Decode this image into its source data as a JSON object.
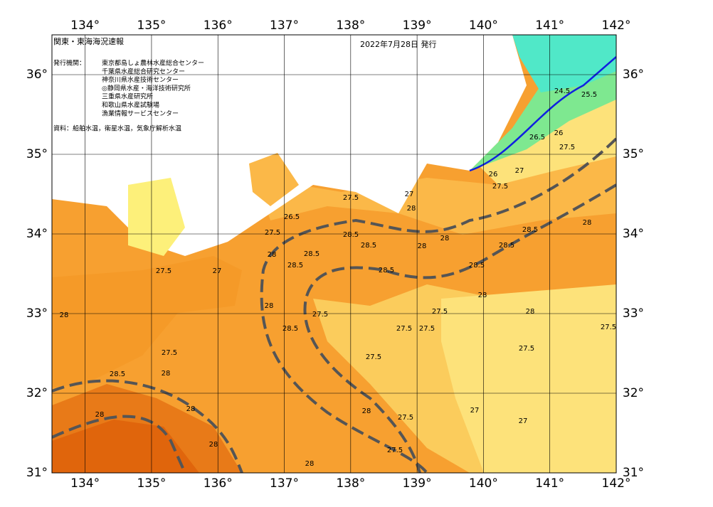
{
  "header": {
    "title": "関東・東海海況速報",
    "date": "2022年7月28日 発行"
  },
  "issuers": {
    "label": "発行機関：",
    "names": [
      "東京都島しょ農林水産総合センター",
      "千葉県水産総合研究センター",
      "神奈川県水産技術センター",
      "◎静岡県水産・海洋技術研究所",
      "三重県水産研究所",
      "和歌山県水産試験場",
      "漁業情報サービスセンター"
    ]
  },
  "source": "資料：船舶水温，衛星水温，気象庁解析水温",
  "map": {
    "lon_range": [
      133.5,
      142
    ],
    "lat_range": [
      31,
      36.5
    ],
    "lon_ticks": [
      {
        "value": 134,
        "label": "134°"
      },
      {
        "value": 135,
        "label": "135°"
      },
      {
        "value": 136,
        "label": "136°"
      },
      {
        "value": 137,
        "label": "137°"
      },
      {
        "value": 138,
        "label": "138°"
      },
      {
        "value": 139,
        "label": "139°"
      },
      {
        "value": 140,
        "label": "140°"
      },
      {
        "value": 141,
        "label": "141°"
      },
      {
        "value": 142,
        "label": "142°"
      }
    ],
    "lat_ticks": [
      {
        "value": 31,
        "label": "31°"
      },
      {
        "value": 32,
        "label": "32°"
      },
      {
        "value": 33,
        "label": "33°"
      },
      {
        "value": 34,
        "label": "34°"
      },
      {
        "value": 35,
        "label": "35°"
      },
      {
        "value": 36,
        "label": "36°"
      }
    ],
    "contour_labels": [
      "27.5",
      "27",
      "28",
      "26.5",
      "27.5",
      "28",
      "28.5",
      "28.5",
      "28.5",
      "28.5",
      "28",
      "28.5",
      "28",
      "28.5",
      "28.5",
      "28.5",
      "28",
      "27.5",
      "27",
      "26",
      "26.5",
      "26",
      "27.5",
      "25.5",
      "24.5",
      "27.5",
      "27.5",
      "27.5",
      "27.5",
      "28",
      "27.5",
      "27.5",
      "28",
      "27.5",
      "28",
      "28.5",
      "28",
      "28",
      "28",
      "28",
      "27.5",
      "27.5",
      "28",
      "27.5",
      "28",
      "28.5",
      "27",
      "27",
      "28",
      "27.5",
      "27"
    ]
  }
}
